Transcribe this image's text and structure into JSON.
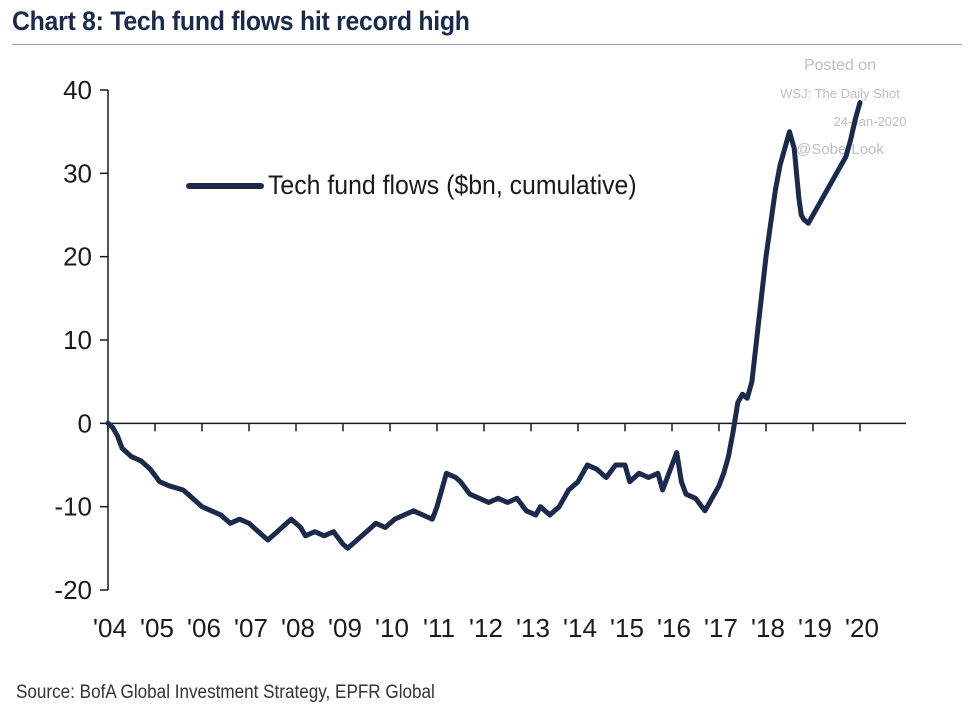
{
  "header": {
    "title": "Chart 8: Tech fund flows hit record high"
  },
  "watermark": {
    "line1": "Posted on",
    "line2": "WSJ: The Daily Shot",
    "line3": "24-Jan-2020",
    "line4": "@SoberLook"
  },
  "footer": {
    "source": "Source: BofA Global Investment Strategy, EPFR Global"
  },
  "colors": {
    "series": "#1b2a4a",
    "axis": "#1a1a1a"
  },
  "chart_data": {
    "type": "line",
    "title": "Chart 8: Tech fund flows hit record high",
    "xlabel": "",
    "ylabel": "",
    "ylim": [
      -20,
      40
    ],
    "yticks": [
      40,
      30,
      20,
      10,
      0,
      -10,
      -20
    ],
    "xlim": [
      2004,
      2020.3
    ],
    "xticks": [
      {
        "value": 2004,
        "label": "'04"
      },
      {
        "value": 2005,
        "label": "'05"
      },
      {
        "value": 2006,
        "label": "'06"
      },
      {
        "value": 2007,
        "label": "'07"
      },
      {
        "value": 2008,
        "label": "'08"
      },
      {
        "value": 2009,
        "label": "'09"
      },
      {
        "value": 2010,
        "label": "'10"
      },
      {
        "value": 2011,
        "label": "'11"
      },
      {
        "value": 2012,
        "label": "'12"
      },
      {
        "value": 2013,
        "label": "'13"
      },
      {
        "value": 2014,
        "label": "'14"
      },
      {
        "value": 2015,
        "label": "'15"
      },
      {
        "value": 2016,
        "label": "'16"
      },
      {
        "value": 2017,
        "label": "'17"
      },
      {
        "value": 2018,
        "label": "'18"
      },
      {
        "value": 2019,
        "label": "'19"
      },
      {
        "value": 2020,
        "label": "'20"
      }
    ],
    "grid": false,
    "legend_position": "top-left",
    "series": [
      {
        "name": "Tech fund flows ($bn, cumulative)",
        "color": "#1b2a4a",
        "x": [
          2004.0,
          2004.1,
          2004.2,
          2004.3,
          2004.5,
          2004.7,
          2004.9,
          2005.1,
          2005.3,
          2005.6,
          2005.8,
          2006.0,
          2006.2,
          2006.4,
          2006.6,
          2006.8,
          2007.0,
          2007.2,
          2007.4,
          2007.6,
          2007.8,
          2007.9,
          2008.1,
          2008.2,
          2008.4,
          2008.6,
          2008.8,
          2009.0,
          2009.1,
          2009.3,
          2009.5,
          2009.7,
          2009.9,
          2010.1,
          2010.3,
          2010.5,
          2010.7,
          2010.9,
          2011.0,
          2011.1,
          2011.2,
          2011.4,
          2011.5,
          2011.7,
          2011.9,
          2012.1,
          2012.3,
          2012.5,
          2012.7,
          2012.9,
          2013.1,
          2013.2,
          2013.4,
          2013.6,
          2013.8,
          2014.0,
          2014.2,
          2014.4,
          2014.6,
          2014.8,
          2015.0,
          2015.1,
          2015.3,
          2015.5,
          2015.7,
          2015.8,
          2016.0,
          2016.1,
          2016.2,
          2016.3,
          2016.5,
          2016.7,
          2016.8,
          2017.0,
          2017.1,
          2017.2,
          2017.3,
          2017.4,
          2017.5,
          2017.6,
          2017.7,
          2017.8,
          2017.9,
          2018.0,
          2018.1,
          2018.2,
          2018.3,
          2018.4,
          2018.5,
          2018.6,
          2018.7,
          2018.75,
          2018.8,
          2018.9,
          2019.0,
          2019.1,
          2019.2,
          2019.3,
          2019.4,
          2019.5,
          2019.6,
          2019.7,
          2019.8,
          2019.9,
          2020.0
        ],
        "y": [
          0.0,
          -0.5,
          -1.5,
          -3.0,
          -4.0,
          -4.5,
          -5.5,
          -7.0,
          -7.5,
          -8.0,
          -9.0,
          -10.0,
          -10.5,
          -11.0,
          -12.0,
          -11.5,
          -12.0,
          -13.0,
          -14.0,
          -13.0,
          -12.0,
          -11.5,
          -12.5,
          -13.5,
          -13.0,
          -13.5,
          -13.0,
          -14.5,
          -15.0,
          -14.0,
          -13.0,
          -12.0,
          -12.5,
          -11.5,
          -11.0,
          -10.5,
          -11.0,
          -11.5,
          -10.0,
          -8.0,
          -6.0,
          -6.5,
          -7.0,
          -8.5,
          -9.0,
          -9.5,
          -9.0,
          -9.5,
          -9.0,
          -10.5,
          -11.0,
          -10.0,
          -11.0,
          -10.0,
          -8.0,
          -7.0,
          -5.0,
          -5.5,
          -6.5,
          -5.0,
          -5.0,
          -7.0,
          -6.0,
          -6.5,
          -6.0,
          -8.0,
          -5.0,
          -3.5,
          -7.0,
          -8.5,
          -9.0,
          -10.5,
          -9.5,
          -7.5,
          -6.0,
          -4.0,
          -1.0,
          2.5,
          3.5,
          3.0,
          5.0,
          10.0,
          15.0,
          20.0,
          24.0,
          28.0,
          31.0,
          33.0,
          35.0,
          33.0,
          27.0,
          25.0,
          24.5,
          24.0,
          25.0,
          26.0,
          27.0,
          28.0,
          29.0,
          30.0,
          31.0,
          32.0,
          34.0,
          36.5,
          38.5
        ]
      }
    ]
  }
}
